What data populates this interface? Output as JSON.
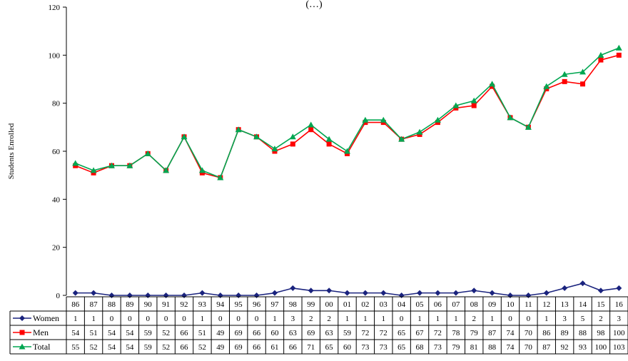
{
  "chart_data": {
    "type": "line",
    "title": "(…)",
    "ylabel": "Students Enrolled",
    "xlabel": "",
    "ylim": [
      0,
      120
    ],
    "yticks": [
      0,
      20,
      40,
      60,
      80,
      100,
      120
    ],
    "grid": false,
    "legend": "data-table-left",
    "categories": [
      "86",
      "87",
      "88",
      "89",
      "90",
      "91",
      "92",
      "93",
      "94",
      "95",
      "96",
      "97",
      "98",
      "99",
      "00",
      "01",
      "02",
      "03",
      "04",
      "05",
      "06",
      "07",
      "08",
      "09",
      "10",
      "11",
      "12",
      "13",
      "14",
      "15",
      "16"
    ],
    "series": [
      {
        "name": "Women",
        "color": "#1a237e",
        "marker": "diamond",
        "values": [
          1,
          1,
          0,
          0,
          0,
          0,
          0,
          1,
          0,
          0,
          0,
          1,
          3,
          2,
          2,
          1,
          1,
          1,
          0,
          1,
          1,
          1,
          2,
          1,
          0,
          0,
          1,
          3,
          5,
          2,
          3
        ]
      },
      {
        "name": "Men",
        "color": "#ff0000",
        "marker": "square",
        "values": [
          54,
          51,
          54,
          54,
          59,
          52,
          66,
          51,
          49,
          69,
          66,
          60,
          63,
          69,
          63,
          59,
          72,
          72,
          65,
          67,
          72,
          78,
          79,
          87,
          74,
          70,
          86,
          89,
          88,
          98,
          100
        ]
      },
      {
        "name": "Total",
        "color": "#00a651",
        "marker": "triangle",
        "values": [
          55,
          52,
          54,
          54,
          59,
          52,
          66,
          52,
          49,
          69,
          66,
          61,
          66,
          71,
          65,
          60,
          73,
          73,
          65,
          68,
          73,
          79,
          81,
          88,
          74,
          70,
          87,
          92,
          93,
          100,
          103
        ]
      }
    ]
  }
}
